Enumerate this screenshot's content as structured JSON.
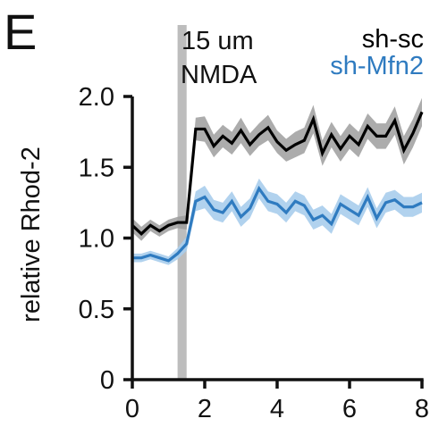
{
  "panel_label": "E",
  "annotation": {
    "line1": "15 um",
    "line2": "NMDA"
  },
  "colors": {
    "sh_sc": "#000000",
    "sh_sc_band": "#9e9e9e",
    "sh_mfn2": "#2f7bc0",
    "sh_mfn2_band": "#a9cdec",
    "stim_bar": "#bdbdbd",
    "axis": "#111111"
  },
  "chart_data": {
    "type": "line",
    "title": "",
    "xlabel": "",
    "ylabel": "relative Rhod-2",
    "xlim": [
      0,
      8
    ],
    "ylim": [
      0,
      2.0
    ],
    "xticks": [
      0,
      2,
      4,
      6,
      8
    ],
    "yticks": [
      0,
      0.5,
      1.0,
      1.5,
      2.0
    ],
    "ytick_labels": [
      "0",
      "0.5",
      "1.0",
      "1.5",
      "2.0"
    ],
    "grid": false,
    "legend_position": "top-right",
    "stimulus_window": [
      1.25,
      1.5
    ],
    "series": [
      {
        "name": "sh-sc",
        "color": "#000000",
        "x": [
          0.0,
          0.25,
          0.5,
          0.75,
          1.0,
          1.25,
          1.5,
          1.75,
          2.0,
          2.25,
          2.5,
          2.75,
          3.0,
          3.25,
          3.5,
          3.75,
          4.0,
          4.25,
          4.5,
          4.75,
          5.0,
          5.25,
          5.5,
          5.75,
          6.0,
          6.25,
          6.5,
          6.75,
          7.0,
          7.25,
          7.5,
          7.75,
          8.0
        ],
        "y": [
          1.09,
          1.03,
          1.09,
          1.05,
          1.09,
          1.11,
          1.11,
          1.77,
          1.77,
          1.65,
          1.72,
          1.67,
          1.76,
          1.66,
          1.73,
          1.78,
          1.68,
          1.62,
          1.66,
          1.69,
          1.84,
          1.6,
          1.73,
          1.63,
          1.72,
          1.66,
          1.79,
          1.72,
          1.72,
          1.83,
          1.62,
          1.74,
          1.89
        ],
        "band": [
          0.05,
          0.05,
          0.04,
          0.04,
          0.04,
          0.04,
          0.05,
          0.08,
          0.09,
          0.08,
          0.08,
          0.08,
          0.09,
          0.08,
          0.08,
          0.09,
          0.08,
          0.08,
          0.09,
          0.09,
          0.1,
          0.09,
          0.09,
          0.09,
          0.09,
          0.09,
          0.09,
          0.09,
          0.09,
          0.1,
          0.1,
          0.1,
          0.1
        ]
      },
      {
        "name": "sh-Mfn2",
        "color": "#2f7bc0",
        "x": [
          0.0,
          0.25,
          0.5,
          0.75,
          1.0,
          1.25,
          1.5,
          1.75,
          2.0,
          2.25,
          2.5,
          2.75,
          3.0,
          3.25,
          3.5,
          3.75,
          4.0,
          4.25,
          4.5,
          4.75,
          5.0,
          5.25,
          5.5,
          5.75,
          6.0,
          6.25,
          6.5,
          6.75,
          7.0,
          7.25,
          7.5,
          7.75,
          8.0
        ],
        "y": [
          0.86,
          0.86,
          0.88,
          0.86,
          0.84,
          0.89,
          0.96,
          1.26,
          1.29,
          1.2,
          1.18,
          1.26,
          1.15,
          1.21,
          1.35,
          1.26,
          1.24,
          1.18,
          1.26,
          1.23,
          1.13,
          1.16,
          1.1,
          1.24,
          1.2,
          1.16,
          1.29,
          1.14,
          1.25,
          1.27,
          1.22,
          1.22,
          1.25
        ],
        "band": [
          0.03,
          0.03,
          0.03,
          0.03,
          0.03,
          0.04,
          0.05,
          0.07,
          0.08,
          0.07,
          0.07,
          0.07,
          0.07,
          0.07,
          0.07,
          0.07,
          0.07,
          0.07,
          0.07,
          0.07,
          0.07,
          0.07,
          0.07,
          0.07,
          0.07,
          0.07,
          0.07,
          0.07,
          0.07,
          0.07,
          0.07,
          0.07,
          0.07
        ]
      }
    ]
  }
}
